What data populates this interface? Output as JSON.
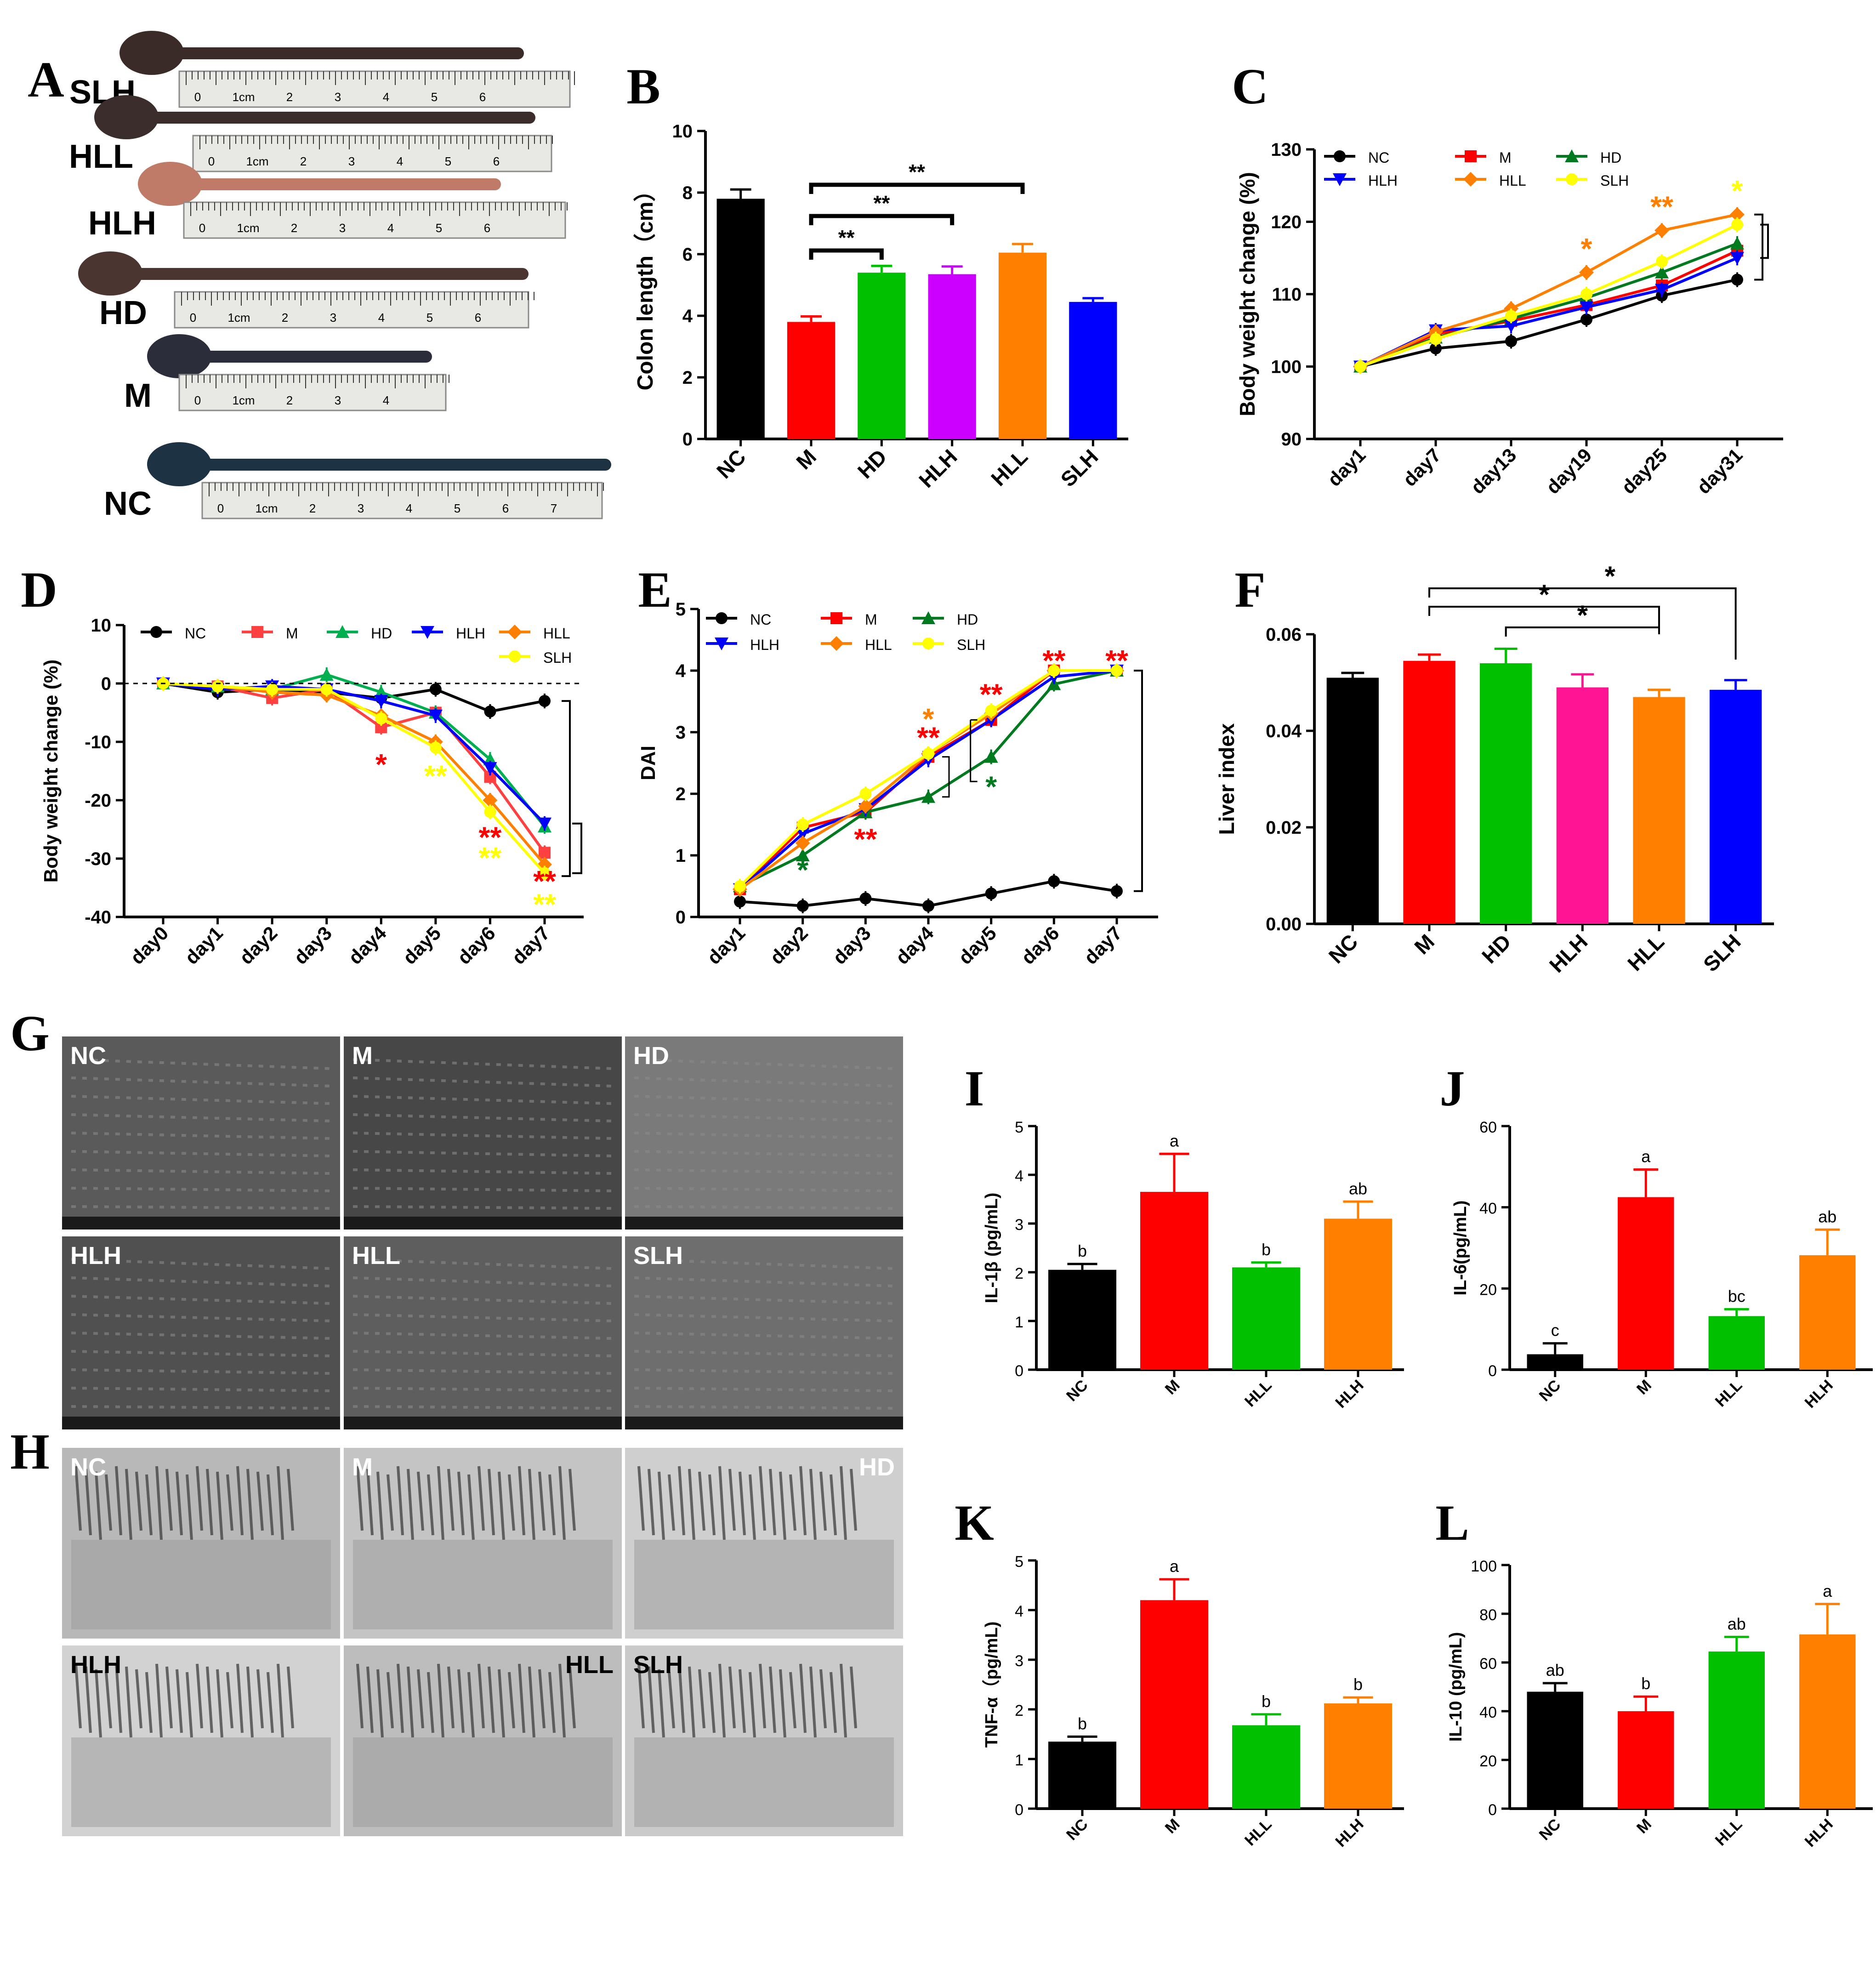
{
  "panel_letters": [
    "A",
    "B",
    "C",
    "D",
    "E",
    "F",
    "G",
    "H",
    "I",
    "J",
    "K",
    "L"
  ],
  "colon_photo": {
    "groups": [
      "SLH",
      "HLL",
      "HLH",
      "HD",
      "M",
      "NC"
    ],
    "ruler_text": "1cm",
    "ruler_numbers": [
      "0",
      "2",
      "3",
      "4",
      "5",
      "6",
      "7"
    ]
  },
  "sem_labels": [
    "NC",
    "M",
    "HD",
    "HLH",
    "HLL",
    "SLH"
  ],
  "tem_labels": [
    "NC",
    "M",
    "HD",
    "HLH",
    "HLL",
    "SLH"
  ],
  "colors": {
    "NC": "#000000",
    "M": "#ff0000",
    "HD": "#00c000",
    "HLH_bar": "#cc00ff",
    "HLL": "#ff8000",
    "SLH": "#0000ff",
    "yellow": "#ffff00",
    "green_dark": "#007a1f",
    "blue_line": "#0000ff",
    "pink": "#ff1493"
  },
  "chart_data": [
    {
      "id": "B",
      "type": "bar",
      "categories": [
        "NC",
        "M",
        "HD",
        "HLH",
        "HLL",
        "SLH"
      ],
      "values": [
        7.8,
        3.8,
        5.4,
        5.35,
        6.05,
        4.45
      ],
      "errors": [
        0.3,
        0.18,
        0.22,
        0.25,
        0.28,
        0.12
      ],
      "bar_colors": [
        "#000000",
        "#ff0000",
        "#00c000",
        "#cc00ff",
        "#ff8000",
        "#0000ff"
      ],
      "ylabel": "Colon length（cm）",
      "ylim": [
        0,
        10
      ],
      "yticks": [
        "0",
        "2",
        "4",
        "6",
        "8",
        "10"
      ],
      "significance": [
        {
          "from": 1,
          "to": 2,
          "label": "**"
        },
        {
          "from": 1,
          "to": 3,
          "label": "**"
        },
        {
          "from": 1,
          "to": 4,
          "label": "**"
        }
      ]
    },
    {
      "id": "C",
      "type": "line",
      "x": [
        "day1",
        "day7",
        "day13",
        "day19",
        "day25",
        "day31"
      ],
      "ylabel": "Body weight change (%)",
      "ylim": [
        90,
        130
      ],
      "yticks": [
        "90",
        "100",
        "110",
        "120",
        "130"
      ],
      "series": [
        {
          "name": "NC",
          "color": "#000000",
          "marker": "circle",
          "values": [
            100,
            102.5,
            103.5,
            106.5,
            109.8,
            112
          ]
        },
        {
          "name": "M",
          "color": "#ff0000",
          "marker": "square",
          "values": [
            100,
            104.5,
            106.3,
            108.5,
            111.2,
            116
          ]
        },
        {
          "name": "HD",
          "color": "#007a1f",
          "marker": "triangle",
          "values": [
            100,
            104,
            106.6,
            109.5,
            113,
            117
          ]
        },
        {
          "name": "HLH",
          "color": "#0000ff",
          "marker": "triangle-down",
          "values": [
            100,
            105,
            105.6,
            108.2,
            110.6,
            115
          ]
        },
        {
          "name": "HLL",
          "color": "#ff8000",
          "marker": "diamond",
          "values": [
            100,
            104.8,
            108,
            113,
            118.8,
            121
          ]
        },
        {
          "name": "SLH",
          "color": "#ffff00",
          "marker": "circle",
          "values": [
            100,
            103.8,
            107,
            110,
            114.5,
            119.6
          ]
        }
      ],
      "annotations": [
        {
          "x": "day19",
          "text": "*",
          "color": "#ff8000"
        },
        {
          "x": "day25",
          "text": "**",
          "color": "#ff8000"
        },
        {
          "x": "day31",
          "text": "*",
          "color": "#ffff00"
        }
      ]
    },
    {
      "id": "D",
      "type": "line",
      "x": [
        "day0",
        "day1",
        "day2",
        "day3",
        "day4",
        "day5",
        "day6",
        "day7"
      ],
      "ylabel": "Body weight change (%)",
      "ylim": [
        -40,
        10
      ],
      "yticks": [
        "-40",
        "-30",
        "-20",
        "-10",
        "0",
        "10"
      ],
      "series": [
        {
          "name": "NC",
          "color": "#000000",
          "marker": "circle",
          "values": [
            0,
            -1.5,
            -1,
            -1.5,
            -2.5,
            -1,
            -4.8,
            -3
          ]
        },
        {
          "name": "M",
          "color": "#ff4040",
          "marker": "square",
          "values": [
            0,
            -0.5,
            -2.5,
            -1,
            -7.5,
            -5,
            -16,
            -29
          ]
        },
        {
          "name": "HD",
          "color": "#00b050",
          "marker": "triangle",
          "values": [
            0,
            -0.5,
            -1,
            1.5,
            -1.5,
            -5,
            -13,
            -24.5
          ]
        },
        {
          "name": "HLH",
          "color": "#0000ff",
          "marker": "triangle-down",
          "values": [
            0,
            -1,
            -0.5,
            -1,
            -3,
            -5.5,
            -14.5,
            -24
          ]
        },
        {
          "name": "HLL",
          "color": "#ff8000",
          "marker": "diamond",
          "values": [
            0,
            -0.5,
            -1.5,
            -2,
            -5.5,
            -10,
            -20,
            -31
          ]
        },
        {
          "name": "SLH",
          "color": "#ffff00",
          "marker": "circle",
          "values": [
            0,
            -0.5,
            -1,
            -1,
            -6,
            -11,
            -22,
            -32.5
          ]
        }
      ],
      "annotations": [
        {
          "x": "day4",
          "text": "*",
          "color": "#ff0000"
        },
        {
          "x": "day5",
          "text": "**",
          "color": "#ffff00"
        },
        {
          "x": "day6",
          "text": "**",
          "color": "#ff0000"
        },
        {
          "x": "day6",
          "text": "**",
          "color": "#ffff00"
        },
        {
          "x": "day7",
          "text": "**",
          "color": "#ff0000"
        },
        {
          "x": "day7",
          "text": "**",
          "color": "#ffff00"
        }
      ]
    },
    {
      "id": "E",
      "type": "line",
      "x": [
        "day1",
        "day2",
        "day3",
        "day4",
        "day5",
        "day6",
        "day7"
      ],
      "ylabel": "DAI",
      "ylim": [
        0,
        5
      ],
      "yticks": [
        "0",
        "1",
        "2",
        "3",
        "4",
        "5"
      ],
      "series": [
        {
          "name": "NC",
          "color": "#000000",
          "marker": "circle",
          "values": [
            0.25,
            0.18,
            0.3,
            0.18,
            0.38,
            0.58,
            0.42
          ]
        },
        {
          "name": "M",
          "color": "#ff0000",
          "marker": "square",
          "values": [
            0.45,
            1.45,
            1.7,
            2.6,
            3.2,
            4,
            4
          ]
        },
        {
          "name": "HD",
          "color": "#007a1f",
          "marker": "triangle",
          "values": [
            0.5,
            1,
            1.7,
            1.95,
            2.6,
            3.78,
            4
          ]
        },
        {
          "name": "HLH",
          "color": "#0000ff",
          "marker": "triangle-down",
          "values": [
            0.45,
            1.35,
            1.75,
            2.55,
            3.2,
            3.9,
            4
          ]
        },
        {
          "name": "HLL",
          "color": "#ff8000",
          "marker": "diamond",
          "values": [
            0.45,
            1.2,
            1.8,
            2.65,
            3.3,
            4,
            4
          ]
        },
        {
          "name": "SLH",
          "color": "#ffff00",
          "marker": "circle",
          "values": [
            0.5,
            1.5,
            2,
            2.65,
            3.35,
            4,
            4
          ]
        }
      ],
      "annotations": [
        {
          "x": "day2",
          "text": "*",
          "color": "#007a1f"
        },
        {
          "x": "day3",
          "text": "**",
          "color": "#ff0000"
        },
        {
          "x": "day4",
          "text": "*",
          "color": "#ff8000"
        },
        {
          "x": "day4",
          "text": "**",
          "color": "#ff0000"
        },
        {
          "x": "day5",
          "text": "**",
          "color": "#ff0000"
        },
        {
          "x": "day5",
          "text": "*",
          "color": "#007a1f"
        },
        {
          "x": "day6",
          "text": "**",
          "color": "#ff0000"
        },
        {
          "x": "day7",
          "text": "**",
          "color": "#ff0000"
        }
      ]
    },
    {
      "id": "F",
      "type": "bar",
      "categories": [
        "NC",
        "M",
        "HD",
        "HLH",
        "HLL",
        "SLH"
      ],
      "values": [
        0.051,
        0.0545,
        0.054,
        0.049,
        0.047,
        0.0485
      ],
      "errors": [
        0.001,
        0.0013,
        0.003,
        0.0027,
        0.0015,
        0.002
      ],
      "bar_colors": [
        "#000000",
        "#ff0000",
        "#00c000",
        "#ff1493",
        "#ff8000",
        "#0000ff"
      ],
      "ylabel": "Liver index",
      "ylim": [
        0,
        0.06
      ],
      "yticks": [
        "0.00",
        "0.02",
        "0.04",
        "0.06"
      ],
      "significance": [
        {
          "from": 2,
          "to": 4,
          "label": "*"
        },
        {
          "from": 1,
          "to": 4,
          "label": "*"
        },
        {
          "from": 1,
          "to": 5,
          "label": "*"
        }
      ]
    },
    {
      "id": "I",
      "type": "bar",
      "categories": [
        "NC",
        "M",
        "HLL",
        "HLH"
      ],
      "values": [
        2.05,
        3.65,
        2.1,
        3.1
      ],
      "errors": [
        0.12,
        0.78,
        0.1,
        0.35
      ],
      "letters": [
        "b",
        "a",
        "b",
        "ab"
      ],
      "bar_colors": [
        "#000000",
        "#ff0000",
        "#00c000",
        "#ff8000"
      ],
      "ylabel": "IL-1β (pg/mL)",
      "ylim": [
        0,
        5
      ],
      "yticks": [
        "0",
        "1",
        "2",
        "3",
        "4",
        "5"
      ]
    },
    {
      "id": "J",
      "type": "bar",
      "categories": [
        "NC",
        "M",
        "HLL",
        "HLH"
      ],
      "values": [
        3.8,
        42.5,
        13.2,
        28.2
      ],
      "errors": [
        2.7,
        6.8,
        1.7,
        6.3
      ],
      "letters": [
        "c",
        "a",
        "bc",
        "ab"
      ],
      "bar_colors": [
        "#000000",
        "#ff0000",
        "#00c000",
        "#ff8000"
      ],
      "ylabel": "IL-6(pg/mL)",
      "ylim": [
        0,
        60
      ],
      "yticks": [
        "0",
        "20",
        "40",
        "60"
      ]
    },
    {
      "id": "K",
      "type": "bar",
      "categories": [
        "NC",
        "M",
        "HLL",
        "HLH"
      ],
      "values": [
        1.35,
        4.2,
        1.68,
        2.12
      ],
      "errors": [
        0.1,
        0.42,
        0.22,
        0.12
      ],
      "letters": [
        "b",
        "a",
        "b",
        "b"
      ],
      "bar_colors": [
        "#000000",
        "#ff0000",
        "#00c000",
        "#ff8000"
      ],
      "ylabel": "TNF-α（pg/mL)",
      "ylim": [
        0,
        5
      ],
      "yticks": [
        "0",
        "1",
        "2",
        "3",
        "4",
        "5"
      ]
    },
    {
      "id": "L",
      "type": "bar",
      "categories": [
        "NC",
        "M",
        "HLL",
        "HLH"
      ],
      "values": [
        48,
        40,
        64.5,
        71.5
      ],
      "errors": [
        3.5,
        6,
        6,
        12.5
      ],
      "letters": [
        "ab",
        "b",
        "ab",
        "a"
      ],
      "bar_colors": [
        "#000000",
        "#ff0000",
        "#00c000",
        "#ff8000"
      ],
      "ylabel": "IL-10 (pg/mL)",
      "ylim": [
        0,
        100
      ],
      "yticks": [
        "0",
        "20",
        "40",
        "60",
        "80",
        "100"
      ]
    }
  ]
}
